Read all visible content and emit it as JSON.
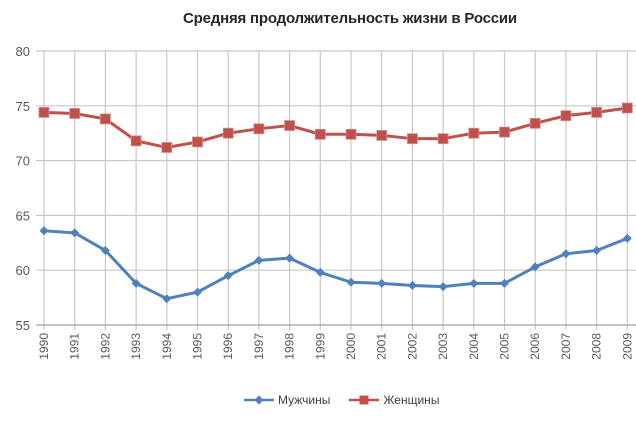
{
  "chart_data": {
    "type": "line",
    "title": "Средняя продолжительность жизни в России",
    "xlabel": "",
    "ylabel": "",
    "ylim": [
      55,
      80
    ],
    "yticks": [
      55,
      60,
      65,
      70,
      75,
      80
    ],
    "grid": true,
    "legend_position": "bottom",
    "categories": [
      "1990",
      "1991",
      "1992",
      "1993",
      "1994",
      "1995",
      "1996",
      "1997",
      "1998",
      "1999",
      "2000",
      "2001",
      "2002",
      "2003",
      "2004",
      "2005",
      "2006",
      "2007",
      "2008",
      "2009"
    ],
    "series": [
      {
        "name": "Мужчины",
        "color": "#4F81BD",
        "marker": "diamond",
        "values": [
          63.6,
          63.4,
          61.8,
          58.8,
          57.4,
          58.0,
          59.5,
          60.9,
          61.1,
          59.8,
          58.9,
          58.8,
          58.6,
          58.5,
          58.8,
          58.8,
          60.3,
          61.5,
          61.8,
          62.9
        ]
      },
      {
        "name": "Женщины",
        "color": "#C0504D",
        "marker": "square",
        "values": [
          74.4,
          74.3,
          73.8,
          71.8,
          71.2,
          71.7,
          72.5,
          72.9,
          73.2,
          72.4,
          72.4,
          72.3,
          72.0,
          72.0,
          72.5,
          72.6,
          73.4,
          74.1,
          74.4,
          74.8
        ]
      }
    ]
  },
  "legend": {
    "men_label": "Мужчины",
    "women_label": "Женщины"
  }
}
